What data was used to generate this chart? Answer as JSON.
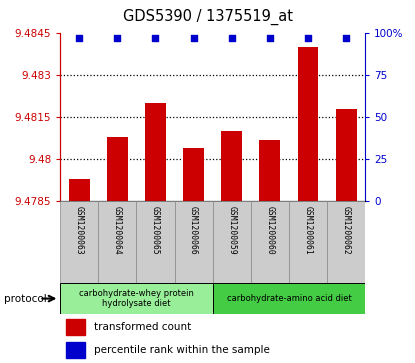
{
  "title": "GDS5390 / 1375519_at",
  "samples": [
    "GSM1200063",
    "GSM1200064",
    "GSM1200065",
    "GSM1200066",
    "GSM1200059",
    "GSM1200060",
    "GSM1200061",
    "GSM1200062"
  ],
  "bar_values": [
    9.4793,
    9.4808,
    9.482,
    9.4804,
    9.481,
    9.4807,
    9.484,
    9.4818
  ],
  "percentile_values": [
    97,
    97,
    97,
    97,
    97,
    97,
    97,
    97
  ],
  "bar_color": "#cc0000",
  "dot_color": "#0000cc",
  "ylim_left": [
    9.4785,
    9.4845
  ],
  "ylim_right": [
    0,
    100
  ],
  "yticks_left": [
    9.4785,
    9.48,
    9.4815,
    9.483,
    9.4845
  ],
  "ytick_labels_left": [
    "9.4785",
    "9.48",
    "9.4815",
    "9.483",
    "9.4845"
  ],
  "yticks_right": [
    0,
    25,
    50,
    75,
    100
  ],
  "ytick_labels_right": [
    "0",
    "25",
    "50",
    "75",
    "100%"
  ],
  "dotted_lines": [
    9.48,
    9.4815,
    9.483
  ],
  "groups": [
    {
      "label": "carbohydrate-whey protein\nhydrolysate diet",
      "color": "#99ee99"
    },
    {
      "label": "carbohydrate-amino acid diet",
      "color": "#44cc44"
    }
  ],
  "group_split": 4,
  "protocol_label": "protocol",
  "legend_bar_label": "transformed count",
  "legend_dot_label": "percentile rank within the sample",
  "cell_bg_color": "#cccccc",
  "cell_border_color": "#888888",
  "plot_bg_color": "#ffffff"
}
